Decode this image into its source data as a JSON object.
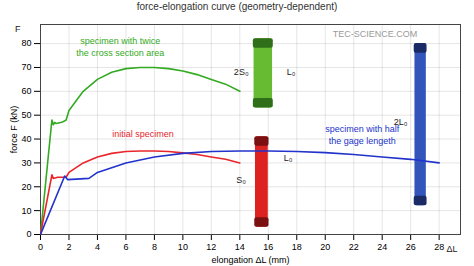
{
  "chart_data": {
    "type": "line",
    "title": "force-elongation curve (geometry-dependent)",
    "x_label": "elongation ΔL (mm)",
    "y_label": "force F (kN)",
    "xlim": [
      0,
      29.5
    ],
    "ylim": [
      0,
      88
    ],
    "xticks": [
      0,
      2,
      4,
      6,
      8,
      10,
      12,
      14,
      16,
      18,
      20,
      22,
      24,
      26,
      28
    ],
    "yticks": [
      0,
      10,
      20,
      30,
      40,
      50,
      60,
      70,
      80
    ],
    "grid": true,
    "series": [
      {
        "name": "specimen with twice the cross section area",
        "color": "#33aa22",
        "x": [
          0,
          0.8,
          0.9,
          1.0,
          1.1,
          1.5,
          1.8,
          2,
          3,
          4,
          5,
          6,
          7,
          8,
          9,
          10,
          11,
          12,
          13,
          14
        ],
        "values": [
          0,
          48,
          46,
          47,
          46.5,
          47,
          48,
          52,
          60,
          65,
          68,
          69.5,
          70,
          70,
          69.5,
          68.5,
          67,
          65,
          63,
          60
        ]
      },
      {
        "name": "initial specimen",
        "color": "#e8262b",
        "x": [
          0,
          0.8,
          0.9,
          1.2,
          1.8,
          2,
          3,
          4,
          5,
          6,
          7,
          8,
          9,
          10,
          11,
          12,
          13,
          14
        ],
        "values": [
          0,
          25,
          23.5,
          24,
          24,
          26,
          30,
          32.5,
          34,
          34.8,
          35,
          35,
          34.8,
          34.2,
          33.5,
          32.5,
          31.5,
          30
        ]
      },
      {
        "name": "specimen with half the gage lengeth",
        "color": "#2233cc",
        "x": [
          0,
          1.7,
          1.9,
          2.5,
          3.4,
          4,
          6,
          8,
          10,
          12,
          14,
          16,
          18,
          20,
          22,
          24,
          26,
          28
        ],
        "values": [
          0,
          24.5,
          23,
          23.2,
          23.5,
          26,
          30,
          32.5,
          34,
          34.8,
          35,
          35,
          34.8,
          34.3,
          33.5,
          32.5,
          31.5,
          30
        ]
      }
    ],
    "annotations": [
      {
        "text": "specimen with twice",
        "x": 5.6,
        "y": 81,
        "color": "#33aa22"
      },
      {
        "text": "the cross section area",
        "x": 5.6,
        "y": 76,
        "color": "#33aa22"
      },
      {
        "text": "initial specimen",
        "x": 7.2,
        "y": 42,
        "color": "#e8262b"
      },
      {
        "text": "specimen with half",
        "x": 22.6,
        "y": 44,
        "color": "#2233cc"
      },
      {
        "text": "the gage lengeth",
        "x": 22.6,
        "y": 39,
        "color": "#2233cc"
      },
      {
        "text": "2S₀",
        "x": 14.1,
        "y": 68,
        "color": "#222222"
      },
      {
        "text": "L₀",
        "x": 17.6,
        "y": 68,
        "color": "#222222"
      },
      {
        "text": "S₀",
        "x": 14.1,
        "y": 23,
        "color": "#222222"
      },
      {
        "text": "L₀",
        "x": 17.4,
        "y": 32,
        "color": "#222222"
      },
      {
        "text": "2L₀",
        "x": 25.3,
        "y": 47,
        "color": "#222222"
      },
      {
        "text": "TEC-SCIENCE.COM",
        "x": 23.5,
        "y": 84,
        "color": "#9a9a9a"
      },
      {
        "text": "F",
        "x": -1.6,
        "y": 86,
        "color": "#222222"
      },
      {
        "text": "ΔL",
        "x": 28.9,
        "y": -6,
        "color": "#222222"
      }
    ]
  }
}
